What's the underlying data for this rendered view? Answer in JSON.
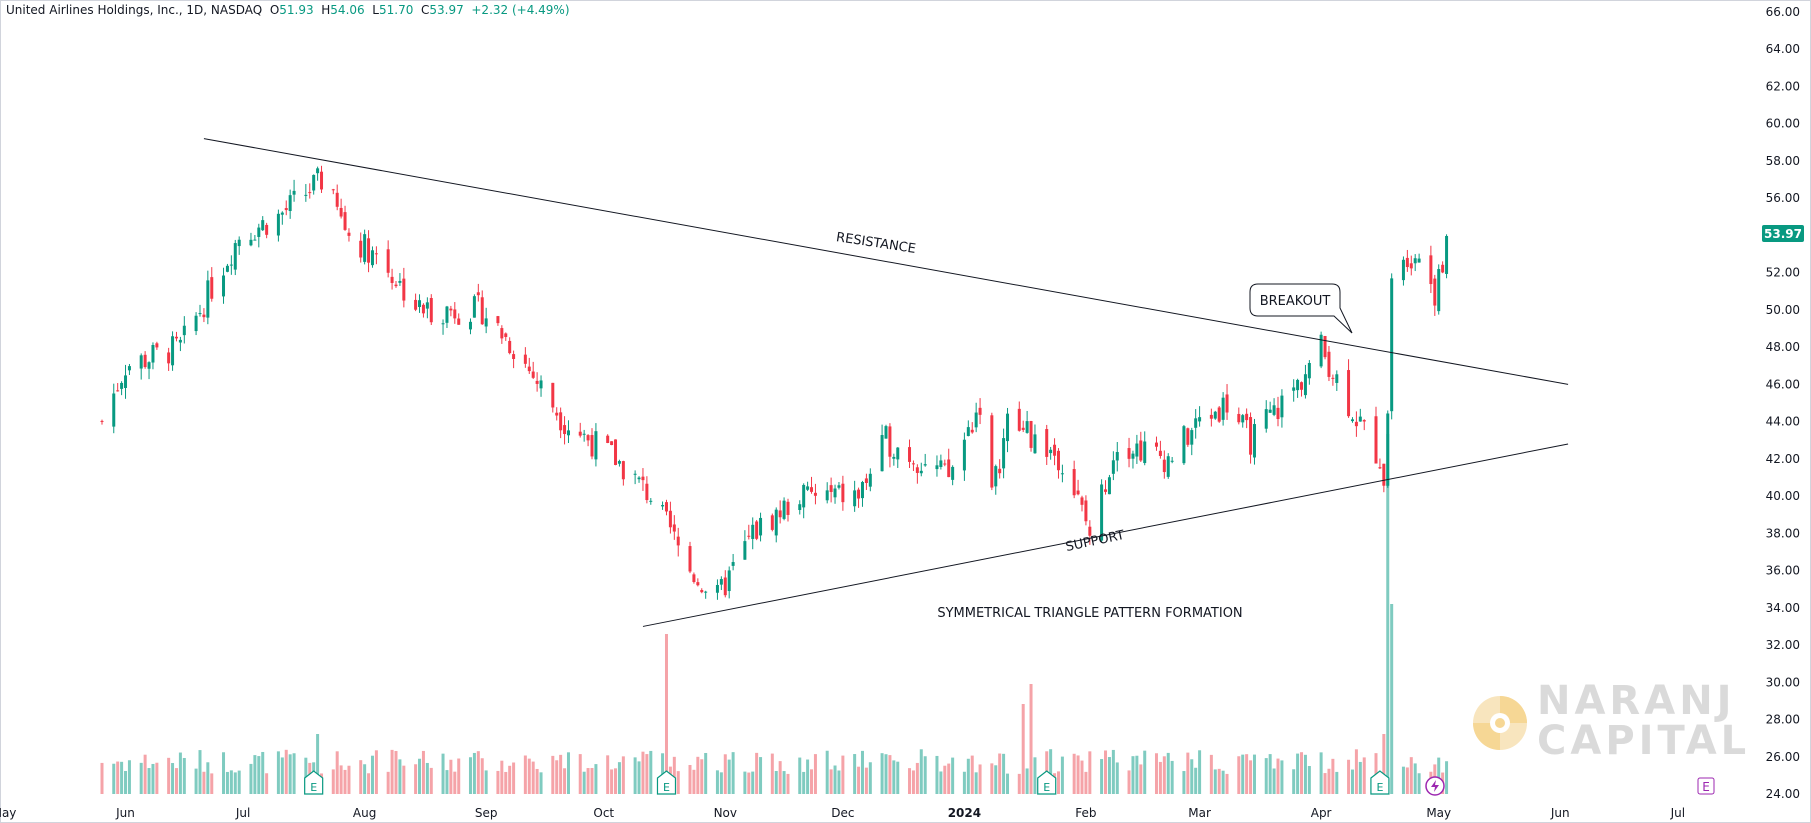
{
  "header": {
    "symbol_label": "United Airlines Holdings, Inc., 1D, NASDAQ",
    "open_label": "O",
    "open": "51.93",
    "high_label": "H",
    "high": "54.06",
    "low_label": "L",
    "low": "51.70",
    "close_label": "C",
    "close": "53.97",
    "change": "+2.32 (+4.49%)"
  },
  "price_badge": "53.97",
  "colors": {
    "up": "#089981",
    "down": "#f23645",
    "vol_up": "#7fcbc0",
    "vol_down": "#f5a3a8",
    "events": "#9c27b0"
  },
  "annotations": {
    "resistance": "RESISTANCE",
    "support": "SUPPORT",
    "breakout": "BREAKOUT",
    "pattern": "SYMMETRICAL TRIANGLE PATTERN FORMATION"
  },
  "logo": {
    "line1": "NARANJ",
    "line2": "CAPITAL"
  },
  "event_markers": {
    "earnings": "E",
    "dividend": "E"
  },
  "chart_data": {
    "type": "candlestick",
    "title": "United Airlines Holdings, Inc., 1D, NASDAQ",
    "ylim": [
      24,
      66
    ],
    "y_ticks": [
      "66.00",
      "64.00",
      "62.00",
      "60.00",
      "58.00",
      "56.00",
      "54.00",
      "52.00",
      "50.00",
      "48.00",
      "46.00",
      "44.00",
      "42.00",
      "40.00",
      "38.00",
      "36.00",
      "34.00",
      "32.00",
      "30.00",
      "28.00",
      "26.00",
      "24.00"
    ],
    "x_ticks": [
      "May",
      "Jun",
      "Jul",
      "Aug",
      "Sep",
      "Oct",
      "Nov",
      "Dec",
      "2024",
      "Feb",
      "Mar",
      "Apr",
      "May",
      "Jun",
      "Jul"
    ],
    "price_path": [
      [
        "2023-05-26",
        44
      ],
      [
        "2023-06-01",
        47
      ],
      [
        "2023-06-15",
        48
      ],
      [
        "2023-06-30",
        54
      ],
      [
        "2023-07-10",
        55
      ],
      [
        "2023-07-21",
        57
      ],
      [
        "2023-07-28",
        54
      ],
      [
        "2023-08-04",
        53
      ],
      [
        "2023-08-15",
        50
      ],
      [
        "2023-08-31",
        50
      ],
      [
        "2023-09-08",
        48
      ],
      [
        "2023-09-21",
        44
      ],
      [
        "2023-10-04",
        42
      ],
      [
        "2023-10-13",
        40
      ],
      [
        "2023-10-23",
        36
      ],
      [
        "2023-10-30",
        34.5
      ],
      [
        "2023-11-08",
        38
      ],
      [
        "2023-11-20",
        40
      ],
      [
        "2023-12-05",
        40
      ],
      [
        "2023-12-12",
        43
      ],
      [
        "2023-12-28",
        41
      ],
      [
        "2024-01-05",
        45
      ],
      [
        "2024-01-08",
        40
      ],
      [
        "2024-01-12",
        44
      ],
      [
        "2024-01-26",
        42
      ],
      [
        "2024-02-02",
        38
      ],
      [
        "2024-02-09",
        43
      ],
      [
        "2024-02-22",
        42
      ],
      [
        "2024-03-01",
        44
      ],
      [
        "2024-03-08",
        45
      ],
      [
        "2024-03-14",
        43
      ],
      [
        "2024-03-26",
        46
      ],
      [
        "2024-04-01",
        48
      ],
      [
        "2024-04-08",
        45
      ],
      [
        "2024-04-16",
        42
      ],
      [
        "2024-04-17",
        41
      ],
      [
        "2024-04-18",
        45
      ],
      [
        "2024-04-19",
        51
      ],
      [
        "2024-04-22",
        53
      ],
      [
        "2024-04-26",
        53
      ],
      [
        "2024-04-30",
        51
      ],
      [
        "2024-05-02",
        52
      ],
      [
        "2024-05-03",
        53.97
      ]
    ],
    "volume_spikes": [
      [
        "2023-07-20",
        6
      ],
      [
        "2023-10-17",
        16
      ],
      [
        "2024-01-16",
        9
      ],
      [
        "2024-01-18",
        11
      ],
      [
        "2024-04-17",
        6
      ],
      [
        "2024-04-18",
        36
      ],
      [
        "2024-04-19",
        19
      ]
    ],
    "trendlines": {
      "resistance": [
        [
          "2023-06-21",
          59.2
        ],
        [
          "2024-06-03",
          46.0
        ]
      ],
      "support": [
        [
          "2023-10-11",
          33.0
        ],
        [
          "2024-06-03",
          42.8
        ]
      ]
    },
    "grid": false,
    "legend": "none"
  }
}
